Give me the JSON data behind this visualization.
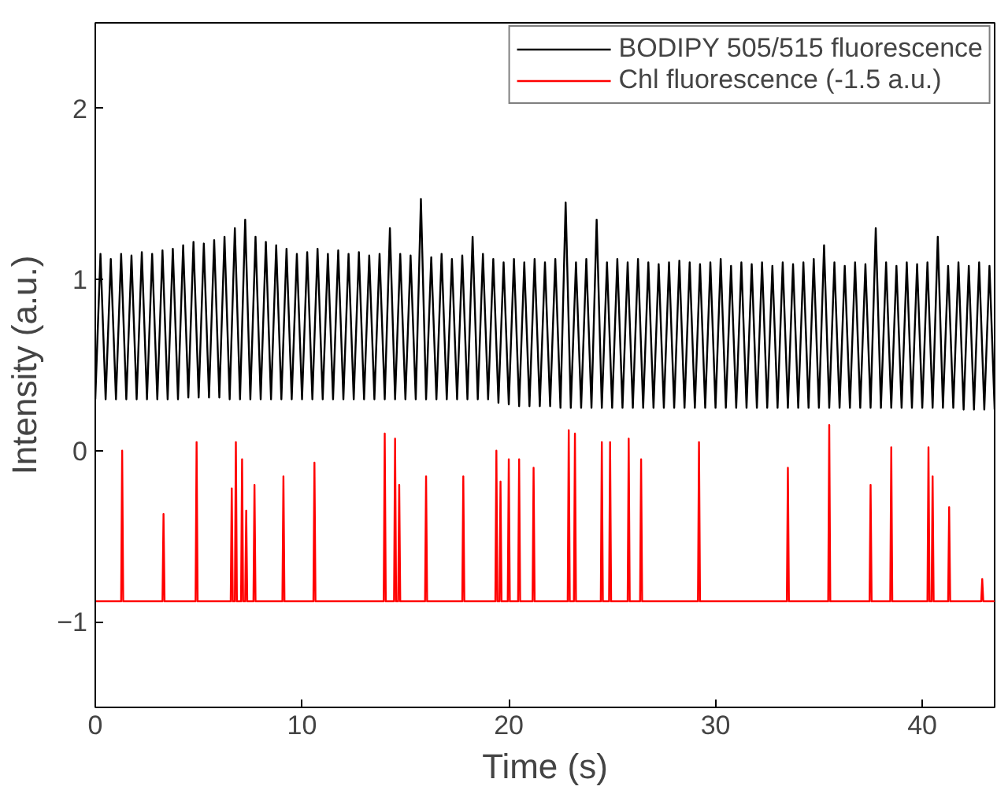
{
  "chart_data": {
    "type": "line",
    "xlabel": "Time (s)",
    "ylabel": "Intensity (a.u.)",
    "xlim": [
      0,
      43.5
    ],
    "ylim": [
      -1.5,
      2.5
    ],
    "xticks": [
      0,
      10,
      20,
      30,
      40
    ],
    "yticks": [
      -1,
      0,
      1,
      2
    ],
    "grid": false,
    "legend": "top right",
    "line_style": "solid",
    "marker": "none",
    "series": [
      {
        "name": "BODIPY 505/515 fluorescence",
        "color": "#000000",
        "x": [
          0,
          0.25,
          0.5,
          0.75,
          1,
          1.25,
          1.5,
          1.75,
          2,
          2.25,
          2.5,
          2.75,
          3,
          3.25,
          3.5,
          3.75,
          4,
          4.25,
          4.5,
          4.75,
          5,
          5.25,
          5.5,
          5.75,
          6,
          6.25,
          6.5,
          6.75,
          7,
          7.25,
          7.5,
          7.75,
          8,
          8.25,
          8.5,
          8.75,
          9,
          9.25,
          9.5,
          9.75,
          10,
          10.25,
          10.5,
          10.75,
          11,
          11.25,
          11.5,
          11.75,
          12,
          12.25,
          12.5,
          12.75,
          13,
          13.25,
          13.5,
          13.75,
          14,
          14.25,
          14.5,
          14.75,
          15,
          15.25,
          15.5,
          15.75,
          16,
          16.25,
          16.5,
          16.75,
          17,
          17.25,
          17.5,
          17.75,
          18,
          18.25,
          18.5,
          18.75,
          19,
          19.25,
          19.5,
          19.75,
          20,
          20.25,
          20.5,
          20.75,
          21,
          21.25,
          21.5,
          21.75,
          22,
          22.25,
          22.5,
          22.75,
          23,
          23.25,
          23.5,
          23.75,
          24,
          24.25,
          24.5,
          24.75,
          25,
          25.25,
          25.5,
          25.75,
          26,
          26.25,
          26.5,
          26.75,
          27,
          27.25,
          27.5,
          27.75,
          28,
          28.25,
          28.5,
          28.75,
          29,
          29.25,
          29.5,
          29.75,
          30,
          30.25,
          30.5,
          30.75,
          31,
          31.25,
          31.5,
          31.75,
          32,
          32.25,
          32.5,
          32.75,
          33,
          33.25,
          33.5,
          33.75,
          34,
          34.25,
          34.5,
          34.75,
          35,
          35.25,
          35.5,
          35.75,
          36,
          36.25,
          36.5,
          36.75,
          37,
          37.25,
          37.5,
          37.75,
          38,
          38.25,
          38.5,
          38.75,
          39,
          39.25,
          39.5,
          39.75,
          40,
          40.25,
          40.5,
          40.75,
          41,
          41.25,
          41.5,
          41.75,
          42,
          42.25,
          42.5,
          42.75,
          43,
          43.25,
          43.5
        ],
        "values": [
          0.3,
          1.15,
          0.3,
          1.12,
          0.3,
          1.15,
          0.3,
          1.14,
          0.3,
          1.16,
          0.3,
          1.15,
          0.3,
          1.17,
          0.3,
          1.18,
          0.3,
          1.2,
          0.31,
          1.22,
          0.31,
          1.21,
          0.31,
          1.23,
          0.31,
          1.25,
          0.3,
          1.3,
          0.3,
          1.35,
          0.3,
          1.25,
          0.3,
          1.22,
          0.3,
          1.2,
          0.3,
          1.18,
          0.3,
          1.15,
          0.3,
          1.16,
          0.3,
          1.18,
          0.3,
          1.15,
          0.3,
          1.17,
          0.3,
          1.15,
          0.3,
          1.16,
          0.3,
          1.14,
          0.3,
          1.15,
          0.3,
          1.3,
          0.3,
          1.15,
          0.3,
          1.14,
          0.3,
          1.47,
          0.3,
          1.13,
          0.3,
          1.15,
          0.3,
          1.12,
          0.3,
          1.14,
          0.3,
          1.25,
          0.3,
          1.15,
          0.3,
          1.12,
          0.28,
          1.1,
          0.27,
          1.12,
          0.26,
          1.1,
          0.26,
          1.12,
          0.26,
          1.1,
          0.26,
          1.12,
          0.25,
          1.45,
          0.25,
          1.1,
          0.25,
          1.12,
          0.25,
          1.35,
          0.25,
          1.1,
          0.25,
          1.12,
          0.25,
          1.1,
          0.25,
          1.12,
          0.25,
          1.1,
          0.25,
          1.09,
          0.25,
          1.1,
          0.25,
          1.11,
          0.25,
          1.1,
          0.25,
          1.09,
          0.25,
          1.1,
          0.25,
          1.12,
          0.25,
          1.08,
          0.25,
          1.1,
          0.25,
          1.09,
          0.25,
          1.1,
          0.25,
          1.08,
          0.25,
          1.1,
          0.25,
          1.09,
          0.25,
          1.1,
          0.25,
          1.12,
          0.25,
          1.2,
          0.25,
          1.1,
          0.25,
          1.08,
          0.25,
          1.1,
          0.25,
          1.09,
          0.25,
          1.3,
          0.25,
          1.1,
          0.25,
          1.08,
          0.25,
          1.1,
          0.25,
          1.09,
          0.25,
          1.1,
          0.25,
          1.25,
          0.25,
          1.08,
          0.25,
          1.1,
          0.24,
          1.08,
          0.24,
          1.1,
          0.24,
          1.08,
          0.24
        ]
      },
      {
        "name": "Chl fluorescence (-1.5 a.u.)",
        "color": "#ff0000",
        "x": [
          0,
          1.25,
          1.3,
          1.35,
          3.25,
          3.3,
          3.35,
          4.85,
          4.9,
          4.95,
          6.55,
          6.6,
          6.65,
          6.75,
          6.8,
          6.85,
          7.05,
          7.1,
          7.15,
          7.25,
          7.3,
          7.35,
          7.65,
          7.7,
          7.75,
          9.05,
          9.1,
          9.15,
          10.55,
          10.6,
          10.65,
          13.95,
          14,
          14.05,
          14.45,
          14.5,
          14.55,
          14.65,
          14.7,
          14.75,
          15.95,
          16,
          16.05,
          17.75,
          17.8,
          17.85,
          19.35,
          19.4,
          19.45,
          19.55,
          19.6,
          19.65,
          19.95,
          20,
          20.05,
          20.45,
          20.5,
          20.55,
          21.15,
          21.2,
          21.25,
          22.85,
          22.9,
          22.95,
          23.15,
          23.2,
          23.25,
          24.45,
          24.5,
          24.55,
          24.85,
          24.9,
          24.95,
          25.75,
          25.8,
          25.85,
          26.35,
          26.4,
          26.45,
          29.15,
          29.2,
          29.25,
          33.45,
          33.5,
          33.55,
          35.45,
          35.5,
          35.55,
          37.45,
          37.5,
          37.55,
          38.45,
          38.5,
          38.55,
          40.25,
          40.3,
          40.35,
          40.45,
          40.5,
          40.55,
          41.25,
          41.3,
          41.35,
          42.85,
          42.9,
          42.95,
          43.5
        ],
        "values": [
          -0.88,
          -0.88,
          0.0,
          -0.88,
          -0.88,
          -0.37,
          -0.88,
          -0.88,
          0.05,
          -0.88,
          -0.88,
          -0.22,
          -0.88,
          -0.88,
          0.05,
          -0.88,
          -0.88,
          -0.05,
          -0.88,
          -0.88,
          -0.35,
          -0.88,
          -0.88,
          -0.2,
          -0.88,
          -0.88,
          -0.15,
          -0.88,
          -0.88,
          -0.07,
          -0.88,
          -0.88,
          0.1,
          -0.88,
          -0.88,
          0.07,
          -0.88,
          -0.88,
          -0.2,
          -0.88,
          -0.88,
          -0.15,
          -0.88,
          -0.88,
          -0.15,
          -0.88,
          -0.88,
          0.0,
          -0.88,
          -0.88,
          -0.18,
          -0.88,
          -0.88,
          -0.05,
          -0.88,
          -0.88,
          -0.05,
          -0.88,
          -0.88,
          -0.1,
          -0.88,
          -0.88,
          0.12,
          -0.88,
          -0.88,
          0.1,
          -0.88,
          -0.88,
          0.05,
          -0.88,
          -0.88,
          0.05,
          -0.88,
          -0.88,
          0.07,
          -0.88,
          -0.88,
          -0.05,
          -0.88,
          -0.88,
          0.05,
          -0.88,
          -0.88,
          -0.1,
          -0.88,
          -0.88,
          0.15,
          -0.88,
          -0.88,
          -0.2,
          -0.88,
          -0.88,
          0.02,
          -0.88,
          -0.88,
          0.02,
          -0.88,
          -0.88,
          -0.15,
          -0.88,
          -0.88,
          -0.33,
          -0.88,
          -0.88,
          -0.75,
          -0.88,
          -0.88
        ]
      }
    ]
  }
}
